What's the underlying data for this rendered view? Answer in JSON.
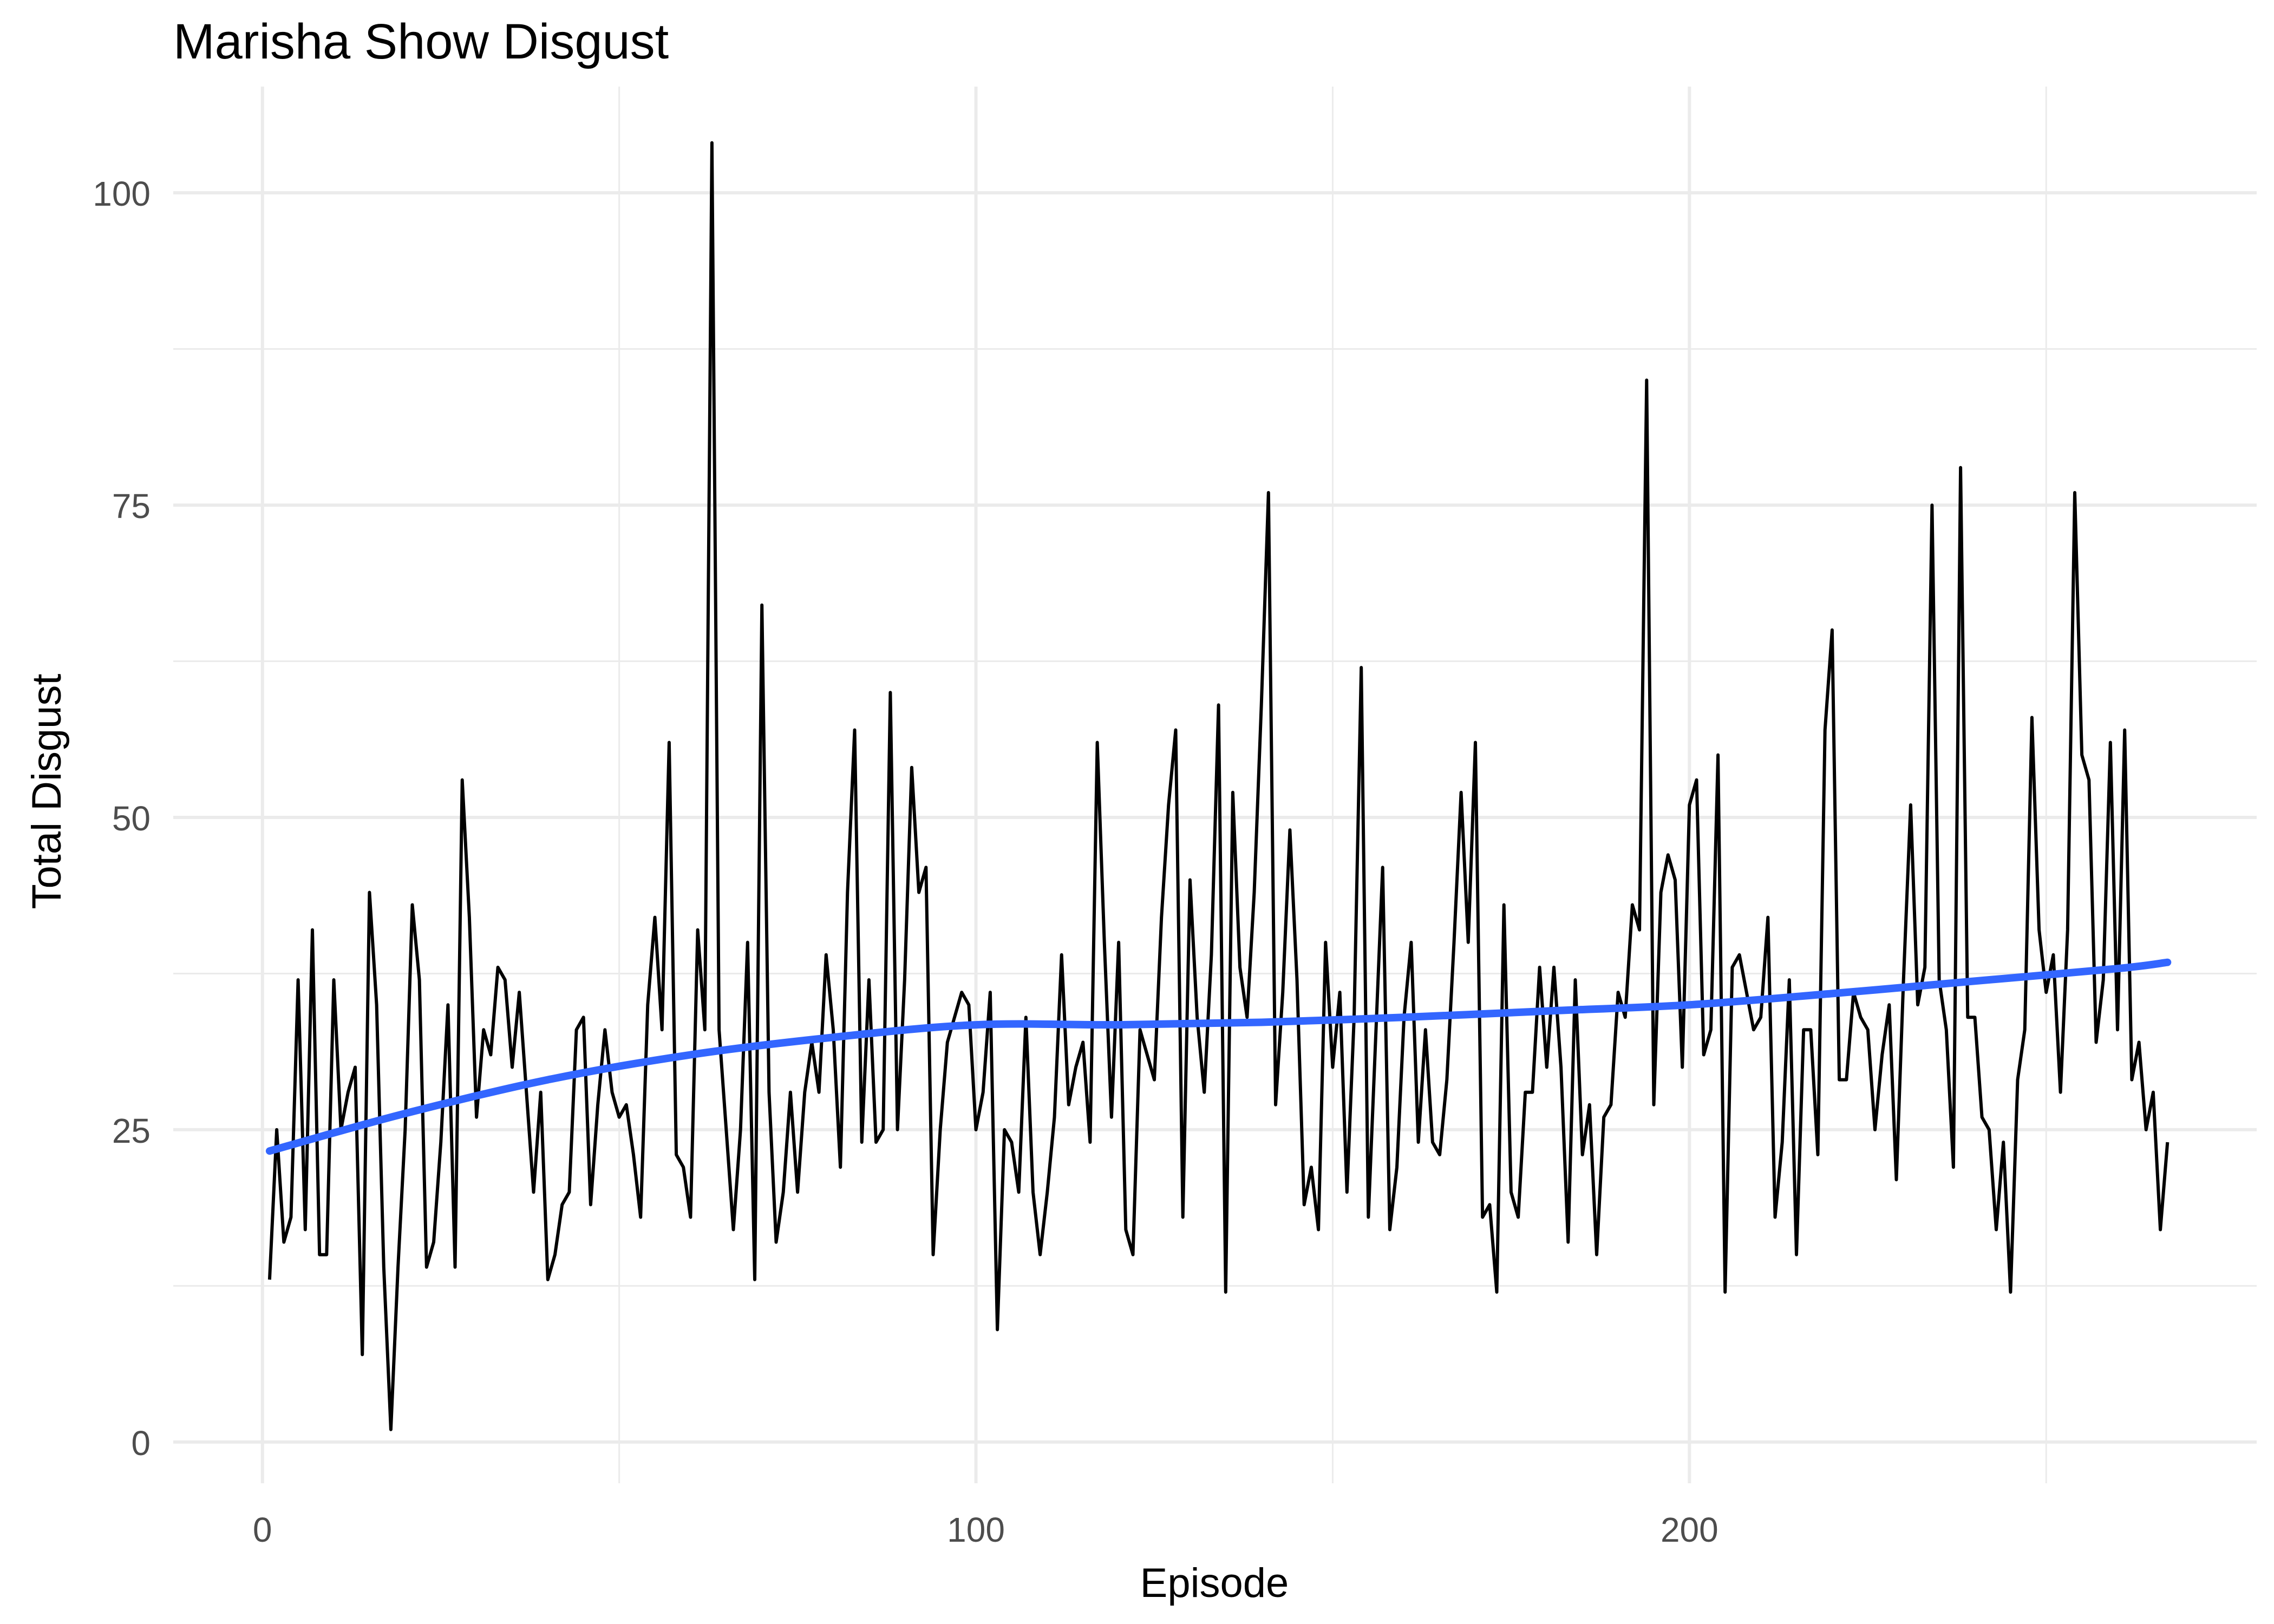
{
  "chart_data": {
    "type": "line",
    "title": "Marisha Show Disgust",
    "xlabel": "Episode",
    "ylabel": "Total Disgust",
    "xlim": [
      -12.5,
      279.5
    ],
    "ylim": [
      -3.3,
      108.5
    ],
    "x_ticks": [
      0,
      100,
      200
    ],
    "x_tick_labels": [
      "0",
      "100",
      "200"
    ],
    "y_ticks": [
      0,
      25,
      50,
      75,
      100
    ],
    "y_tick_labels": [
      "0",
      "25",
      "50",
      "75",
      "100"
    ],
    "grid": true,
    "legend": "none",
    "series": [
      {
        "style": "line",
        "color": "#000000",
        "x_start": 1,
        "values": [
          13,
          25,
          16,
          18,
          37,
          17,
          41,
          15,
          15,
          37,
          25,
          28,
          30,
          7,
          44,
          35,
          14,
          1,
          14,
          25,
          43,
          37,
          14,
          16,
          24,
          35,
          14,
          53,
          42,
          26,
          33,
          31,
          38,
          37,
          30,
          36,
          28,
          20,
          28,
          13,
          15,
          19,
          20,
          33,
          34,
          19,
          27,
          33,
          28,
          26,
          27,
          23,
          18,
          35,
          42,
          33,
          56,
          23,
          22,
          18,
          41,
          33,
          104,
          33,
          25,
          17,
          25,
          40,
          13,
          67,
          28,
          16,
          20,
          28,
          20,
          28,
          32,
          28,
          39,
          33,
          22,
          44,
          57,
          24,
          37,
          24,
          25,
          60,
          25,
          37,
          54,
          44,
          46,
          15,
          25,
          32,
          34,
          36,
          35,
          25,
          28,
          36,
          9,
          25,
          24,
          20,
          34,
          20,
          15,
          20,
          26,
          39,
          27,
          30,
          32,
          24,
          56,
          40,
          26,
          40,
          17,
          15,
          33,
          31,
          29,
          42,
          51,
          57,
          18,
          45,
          34,
          28,
          39,
          59,
          12,
          52,
          38,
          34,
          44,
          59,
          76,
          27,
          36,
          49,
          37,
          19,
          22,
          17,
          40,
          30,
          36,
          20,
          34,
          62,
          18,
          32,
          46,
          17,
          22,
          34,
          40,
          24,
          33,
          24,
          23,
          29,
          40,
          52,
          40,
          56,
          18,
          19,
          12,
          43,
          20,
          18,
          28,
          28,
          38,
          30,
          38,
          30,
          16,
          37,
          23,
          27,
          15,
          26,
          27,
          36,
          34,
          43,
          41,
          85,
          27,
          44,
          47,
          45,
          30,
          51,
          53,
          31,
          33,
          55,
          12,
          38,
          39,
          36,
          33,
          34,
          42,
          18,
          24,
          37,
          15,
          33,
          33,
          23,
          57,
          65,
          29,
          29,
          36,
          34,
          33,
          25,
          31,
          35,
          21,
          37,
          51,
          35,
          38,
          75,
          37,
          33,
          22,
          78,
          34,
          34,
          26,
          25,
          17,
          24,
          12,
          29,
          33,
          58,
          41,
          36,
          39,
          28,
          41,
          76,
          55,
          53,
          32,
          37,
          56,
          33,
          57,
          29,
          32,
          25,
          28,
          17,
          24
        ]
      },
      {
        "style": "smooth",
        "color": "#3366FF",
        "x": [
          1,
          20,
          40,
          60,
          80,
          100,
          120,
          140,
          160,
          180,
          200,
          220,
          240,
          260,
          267
        ],
        "values": [
          23.3,
          26.3,
          29.0,
          31.0,
          32.4,
          33.4,
          33.4,
          33.6,
          34.0,
          34.5,
          35.0,
          35.9,
          36.9,
          37.9,
          38.4
        ]
      }
    ]
  }
}
